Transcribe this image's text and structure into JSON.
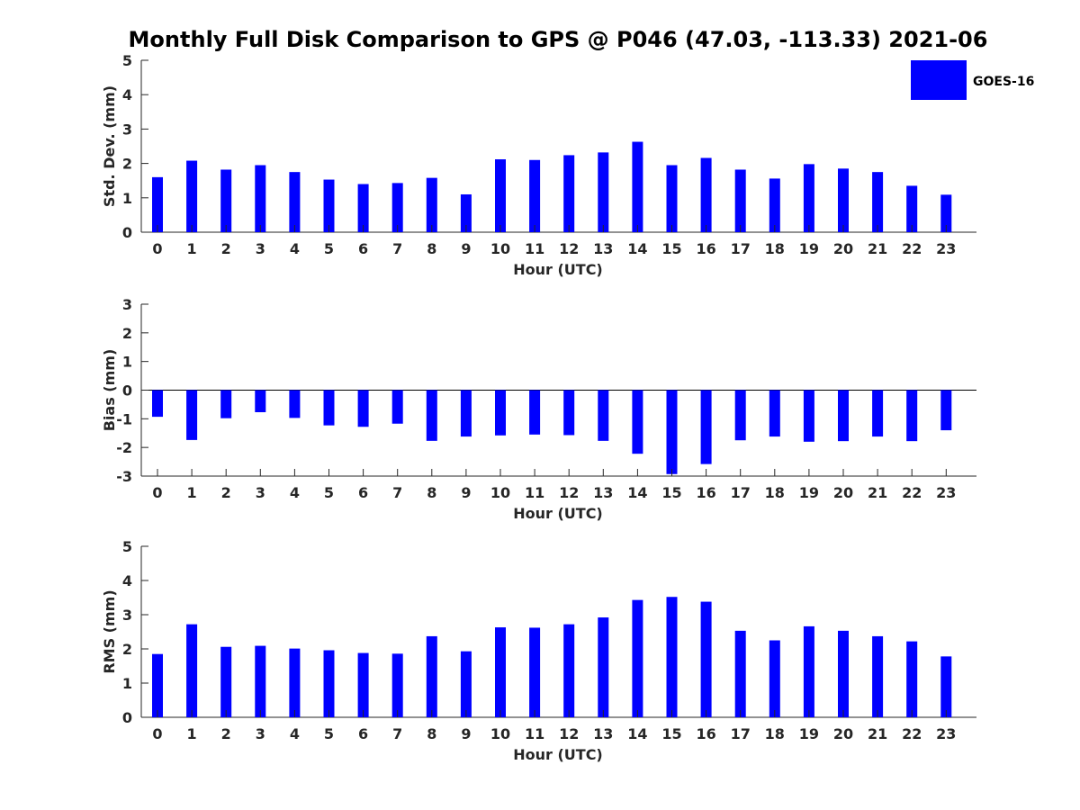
{
  "chart_data": {
    "title": "Monthly Full Disk Comparison to GPS @ P046 (47.03, -113.33) 2021-06",
    "legend": {
      "position": "top-right",
      "entries": [
        {
          "name": "GOES-16",
          "color": "#0000ff"
        }
      ]
    },
    "panels": [
      {
        "type": "bar",
        "series_name": "GOES-16",
        "color": "#0000ff",
        "xlabel": "Hour (UTC)",
        "ylabel": "Std. Dev. (mm)",
        "ylim": [
          0,
          5
        ],
        "yticks": [
          "0",
          "1",
          "2",
          "3",
          "4",
          "5"
        ],
        "categories": [
          "0",
          "1",
          "2",
          "3",
          "4",
          "5",
          "6",
          "7",
          "8",
          "9",
          "10",
          "11",
          "12",
          "13",
          "14",
          "15",
          "16",
          "17",
          "18",
          "19",
          "20",
          "21",
          "22",
          "23"
        ],
        "values": [
          1.6,
          2.08,
          1.82,
          1.95,
          1.75,
          1.53,
          1.4,
          1.43,
          1.58,
          1.1,
          2.12,
          2.1,
          2.24,
          2.32,
          2.63,
          1.95,
          2.16,
          1.82,
          1.56,
          1.98,
          1.85,
          1.75,
          1.35,
          1.09
        ]
      },
      {
        "type": "bar",
        "series_name": "GOES-16",
        "color": "#0000ff",
        "xlabel": "Hour (UTC)",
        "ylabel": "Bias (mm)",
        "ylim": [
          -3,
          3
        ],
        "yticks": [
          "-3",
          "-2",
          "-1",
          "0",
          "1",
          "2",
          "3"
        ],
        "zero_line": true,
        "categories": [
          "0",
          "1",
          "2",
          "3",
          "4",
          "5",
          "6",
          "7",
          "8",
          "9",
          "10",
          "11",
          "12",
          "13",
          "14",
          "15",
          "16",
          "17",
          "18",
          "19",
          "20",
          "21",
          "22",
          "23"
        ],
        "values": [
          -0.93,
          -1.74,
          -0.98,
          -0.77,
          -0.97,
          -1.23,
          -1.28,
          -1.17,
          -1.77,
          -1.62,
          -1.58,
          -1.55,
          -1.57,
          -1.77,
          -2.22,
          -2.93,
          -2.58,
          -1.75,
          -1.62,
          -1.8,
          -1.78,
          -1.62,
          -1.78,
          -1.4
        ]
      },
      {
        "type": "bar",
        "series_name": "GOES-16",
        "color": "#0000ff",
        "xlabel": "Hour (UTC)",
        "ylabel": "RMS (mm)",
        "ylim": [
          0,
          5
        ],
        "yticks": [
          "0",
          "1",
          "2",
          "3",
          "4",
          "5"
        ],
        "categories": [
          "0",
          "1",
          "2",
          "3",
          "4",
          "5",
          "6",
          "7",
          "8",
          "9",
          "10",
          "11",
          "12",
          "13",
          "14",
          "15",
          "16",
          "17",
          "18",
          "19",
          "20",
          "21",
          "22",
          "23"
        ],
        "values": [
          1.85,
          2.72,
          2.06,
          2.09,
          2.01,
          1.96,
          1.88,
          1.86,
          2.37,
          1.93,
          2.63,
          2.62,
          2.72,
          2.92,
          3.43,
          3.52,
          3.38,
          2.53,
          2.25,
          2.66,
          2.53,
          2.37,
          2.22,
          1.78
        ]
      }
    ]
  }
}
